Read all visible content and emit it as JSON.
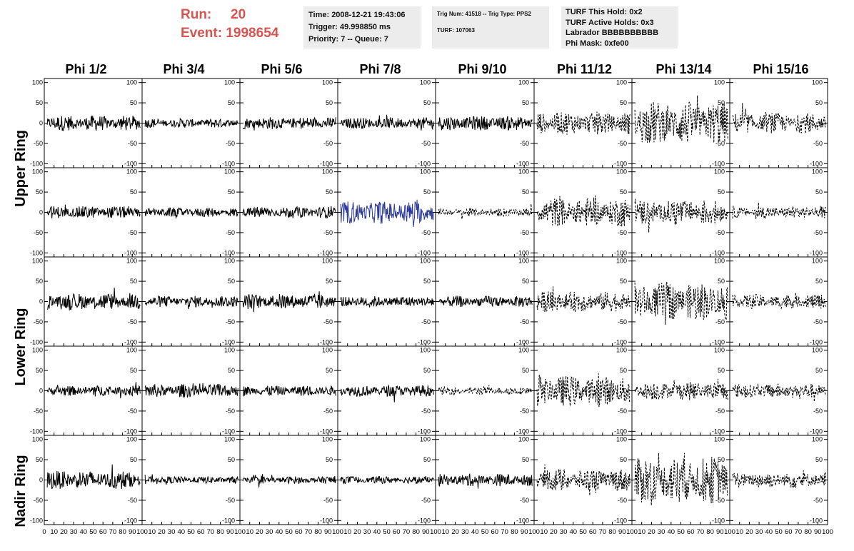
{
  "run": {
    "run_label": "Run:",
    "run_value": "20",
    "event_label": "Event:",
    "event_value": "1998654"
  },
  "info_time": {
    "time": "Time: 2008-12-21 19:43:06",
    "trigger": "Trigger: 49.998850 ms",
    "priority": "Priority: 7 -- Queue: 7"
  },
  "info_trig": {
    "trig": "Trig Num: 41518 -- Trig Type: PPS2",
    "turf": "TURF: 107063"
  },
  "info_turf": {
    "this_hold": "TURF This Hold: 0x2",
    "active_holds": "TURF Active Holds: 0x3",
    "labrador": "Labrador BBBBBBBBBB",
    "phi_mask": "Phi Mask: 0xfe00"
  },
  "columns": [
    "Phi 1/2",
    "Phi 3/4",
    "Phi 5/6",
    "Phi 7/8",
    "Phi 9/10",
    "Phi 11/12",
    "Phi 13/14",
    "Phi 15/16"
  ],
  "rows": [
    "Upper Ring",
    "Lower Ring",
    "Nadir Ring"
  ],
  "y_ticks": [
    "100",
    "50",
    "0",
    "-50",
    "-100"
  ],
  "x_ticks_first": [
    "0",
    "10",
    "20",
    "30",
    "40",
    "50",
    "60",
    "70",
    "80",
    "90",
    "100"
  ],
  "x_ticks_other": [
    "10",
    "20",
    "30",
    "40",
    "50",
    "60",
    "70",
    "80",
    "90",
    "100"
  ],
  "colors": {
    "trace": "#000000",
    "highlight": "#2b3a9a",
    "title_red": "#d9534f",
    "info_bg": "#ececec"
  },
  "chart_data": {
    "type": "line",
    "description_rows": [
      "upper-1",
      "upper-2",
      "lower-1",
      "lower-2",
      "nadir"
    ],
    "xlim": [
      0,
      100
    ],
    "ylim": [
      -110,
      110
    ],
    "panel_amplitudes": [
      [
        15,
        9,
        12,
        11,
        14,
        22,
        42,
        20
      ],
      [
        12,
        9,
        11,
        22,
        8,
        28,
        25,
        12
      ],
      [
        16,
        11,
        15,
        11,
        11,
        20,
        38,
        14
      ],
      [
        10,
        13,
        10,
        11,
        8,
        30,
        18,
        14
      ],
      [
        18,
        7,
        7,
        7,
        12,
        22,
        46,
        16
      ]
    ],
    "panel_styles": [
      [
        "solid",
        "solid",
        "solid",
        "solid",
        "solid",
        "dashed",
        "dashed",
        "dashed"
      ],
      [
        "solid",
        "solid",
        "solid",
        "highlight",
        "dashed",
        "dashed",
        "dashed",
        "dashed"
      ],
      [
        "solid",
        "solid",
        "solid",
        "solid",
        "solid",
        "dashed",
        "dashed",
        "dashed"
      ],
      [
        "solid",
        "solid",
        "solid",
        "solid",
        "dashed",
        "dashed",
        "dashed",
        "dashed"
      ],
      [
        "solid",
        "solid",
        "solid",
        "solid",
        "solid",
        "dashed",
        "dashed",
        "dashed"
      ]
    ]
  }
}
